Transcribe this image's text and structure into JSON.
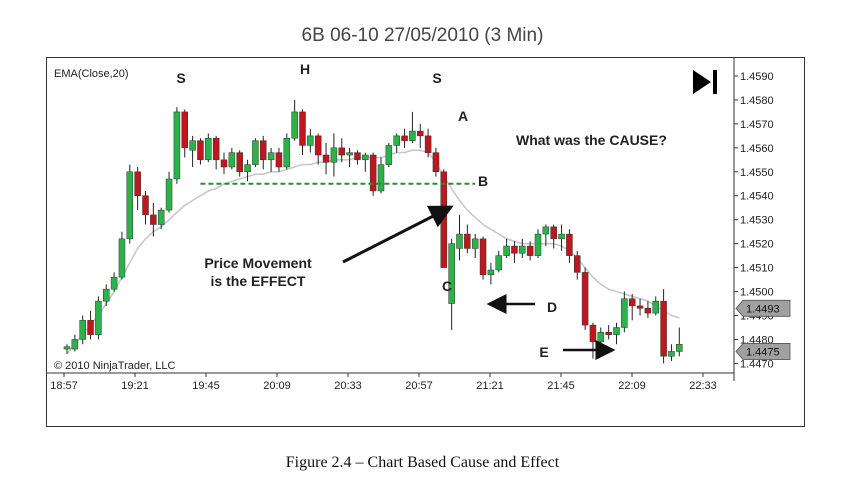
{
  "title": "6B 06-10  27/05/2010 (3 Min)",
  "caption": "Figure 2.4 – Chart Based Cause and Effect",
  "indicator_label": "EMA(Close,20)",
  "copyright": "© 2010 NinjaTrader, LLC",
  "colors": {
    "up": "#2bb34a",
    "down": "#c0161d",
    "ema": "#c8c8c8",
    "support": "#2e8b2e",
    "price_marker": "#a0a0a0",
    "arrow": "#111111"
  },
  "annotations": {
    "S_left": "S",
    "H": "H",
    "S_right": "S",
    "A": "A",
    "B": "B",
    "C": "C",
    "D": "D",
    "E": "E",
    "question": "What was the CAUSE?",
    "effect_line1": "Price Movement",
    "effect_line2": "is the EFFECT"
  },
  "chart_data": {
    "type": "candlestick",
    "x_tick_labels": [
      "18:57",
      "19:21",
      "19:45",
      "20:09",
      "20:33",
      "20:57",
      "21:21",
      "21:45",
      "22:09",
      "22:33"
    ],
    "y_tick_labels": [
      "1.4590",
      "1.4580",
      "1.4570",
      "1.4560",
      "1.4550",
      "1.4540",
      "1.4530",
      "1.4520",
      "1.4510",
      "1.4500",
      "1.4490",
      "1.4480",
      "1.4470"
    ],
    "ylim": [
      1.4466,
      1.4595
    ],
    "price_markers": [
      "1.4493",
      "1.4475"
    ],
    "support_level": 1.4545,
    "candles": [
      {
        "o": 1.4476,
        "h": 1.4478,
        "l": 1.4474,
        "c": 1.4477
      },
      {
        "o": 1.4476,
        "h": 1.4482,
        "l": 1.4475,
        "c": 1.448
      },
      {
        "o": 1.448,
        "h": 1.449,
        "l": 1.4478,
        "c": 1.4488
      },
      {
        "o": 1.4488,
        "h": 1.4492,
        "l": 1.448,
        "c": 1.4482
      },
      {
        "o": 1.4482,
        "h": 1.4498,
        "l": 1.448,
        "c": 1.4496
      },
      {
        "o": 1.4496,
        "h": 1.4503,
        "l": 1.4494,
        "c": 1.4501
      },
      {
        "o": 1.4501,
        "h": 1.4508,
        "l": 1.45,
        "c": 1.4506
      },
      {
        "o": 1.4506,
        "h": 1.4525,
        "l": 1.4505,
        "c": 1.4522
      },
      {
        "o": 1.4522,
        "h": 1.4553,
        "l": 1.452,
        "c": 1.455
      },
      {
        "o": 1.455,
        "h": 1.4552,
        "l": 1.4534,
        "c": 1.454
      },
      {
        "o": 1.454,
        "h": 1.4542,
        "l": 1.4528,
        "c": 1.4532
      },
      {
        "o": 1.4532,
        "h": 1.4537,
        "l": 1.4523,
        "c": 1.4528
      },
      {
        "o": 1.4528,
        "h": 1.4535,
        "l": 1.4526,
        "c": 1.4534
      },
      {
        "o": 1.4534,
        "h": 1.455,
        "l": 1.4533,
        "c": 1.4547
      },
      {
        "o": 1.4547,
        "h": 1.4577,
        "l": 1.4545,
        "c": 1.4575
      },
      {
        "o": 1.4575,
        "h": 1.4576,
        "l": 1.4556,
        "c": 1.456
      },
      {
        "o": 1.4559,
        "h": 1.4565,
        "l": 1.4552,
        "c": 1.4563
      },
      {
        "o": 1.4563,
        "h": 1.4564,
        "l": 1.4553,
        "c": 1.4555
      },
      {
        "o": 1.4555,
        "h": 1.4566,
        "l": 1.4554,
        "c": 1.4564
      },
      {
        "o": 1.4564,
        "h": 1.4565,
        "l": 1.4551,
        "c": 1.4555
      },
      {
        "o": 1.4555,
        "h": 1.4558,
        "l": 1.4549,
        "c": 1.4552
      },
      {
        "o": 1.4552,
        "h": 1.456,
        "l": 1.4551,
        "c": 1.4558
      },
      {
        "o": 1.4558,
        "h": 1.4559,
        "l": 1.4548,
        "c": 1.455
      },
      {
        "o": 1.455,
        "h": 1.4555,
        "l": 1.4546,
        "c": 1.4553
      },
      {
        "o": 1.4553,
        "h": 1.4564,
        "l": 1.4552,
        "c": 1.4563
      },
      {
        "o": 1.4563,
        "h": 1.4565,
        "l": 1.4551,
        "c": 1.4555
      },
      {
        "o": 1.4555,
        "h": 1.456,
        "l": 1.455,
        "c": 1.4558
      },
      {
        "o": 1.4558,
        "h": 1.456,
        "l": 1.455,
        "c": 1.4552
      },
      {
        "o": 1.4552,
        "h": 1.4566,
        "l": 1.4551,
        "c": 1.4564
      },
      {
        "o": 1.4564,
        "h": 1.458,
        "l": 1.4563,
        "c": 1.4575
      },
      {
        "o": 1.4575,
        "h": 1.4576,
        "l": 1.4557,
        "c": 1.4561
      },
      {
        "o": 1.4561,
        "h": 1.4568,
        "l": 1.4558,
        "c": 1.4565
      },
      {
        "o": 1.4565,
        "h": 1.4566,
        "l": 1.4553,
        "c": 1.4557
      },
      {
        "o": 1.4557,
        "h": 1.4562,
        "l": 1.4549,
        "c": 1.4554
      },
      {
        "o": 1.4554,
        "h": 1.4566,
        "l": 1.4548,
        "c": 1.456
      },
      {
        "o": 1.456,
        "h": 1.4564,
        "l": 1.4554,
        "c": 1.4557
      },
      {
        "o": 1.4557,
        "h": 1.456,
        "l": 1.4552,
        "c": 1.4558
      },
      {
        "o": 1.4558,
        "h": 1.4559,
        "l": 1.4553,
        "c": 1.4555
      },
      {
        "o": 1.4555,
        "h": 1.4558,
        "l": 1.455,
        "c": 1.4557
      },
      {
        "o": 1.4557,
        "h": 1.4558,
        "l": 1.454,
        "c": 1.4542
      },
      {
        "o": 1.4542,
        "h": 1.4556,
        "l": 1.4541,
        "c": 1.4553
      },
      {
        "o": 1.4553,
        "h": 1.4562,
        "l": 1.4552,
        "c": 1.4561
      },
      {
        "o": 1.4561,
        "h": 1.4566,
        "l": 1.4558,
        "c": 1.4565
      },
      {
        "o": 1.4565,
        "h": 1.4568,
        "l": 1.456,
        "c": 1.4563
      },
      {
        "o": 1.4563,
        "h": 1.4575,
        "l": 1.4562,
        "c": 1.4567
      },
      {
        "o": 1.4567,
        "h": 1.457,
        "l": 1.456,
        "c": 1.4565
      },
      {
        "o": 1.4565,
        "h": 1.4568,
        "l": 1.4556,
        "c": 1.4558
      },
      {
        "o": 1.4558,
        "h": 1.456,
        "l": 1.4548,
        "c": 1.455
      },
      {
        "o": 1.455,
        "h": 1.4551,
        "l": 1.451,
        "c": 1.451
      },
      {
        "o": 1.4495,
        "h": 1.4522,
        "l": 1.4484,
        "c": 1.452
      },
      {
        "o": 1.4518,
        "h": 1.4532,
        "l": 1.4513,
        "c": 1.4524
      },
      {
        "o": 1.4524,
        "h": 1.4528,
        "l": 1.4516,
        "c": 1.4518
      },
      {
        "o": 1.4518,
        "h": 1.4524,
        "l": 1.4514,
        "c": 1.4522
      },
      {
        "o": 1.4522,
        "h": 1.4523,
        "l": 1.4505,
        "c": 1.4507
      },
      {
        "o": 1.4507,
        "h": 1.4512,
        "l": 1.4503,
        "c": 1.4509
      },
      {
        "o": 1.4509,
        "h": 1.4517,
        "l": 1.4508,
        "c": 1.4515
      },
      {
        "o": 1.4515,
        "h": 1.4522,
        "l": 1.4514,
        "c": 1.4519
      },
      {
        "o": 1.4519,
        "h": 1.4521,
        "l": 1.4512,
        "c": 1.4516
      },
      {
        "o": 1.4516,
        "h": 1.4522,
        "l": 1.4514,
        "c": 1.4519
      },
      {
        "o": 1.4519,
        "h": 1.4521,
        "l": 1.4513,
        "c": 1.4515
      },
      {
        "o": 1.4515,
        "h": 1.4526,
        "l": 1.4514,
        "c": 1.4524
      },
      {
        "o": 1.4524,
        "h": 1.4528,
        "l": 1.4519,
        "c": 1.4527
      },
      {
        "o": 1.4527,
        "h": 1.4528,
        "l": 1.4518,
        "c": 1.4522
      },
      {
        "o": 1.4522,
        "h": 1.4528,
        "l": 1.4517,
        "c": 1.4524
      },
      {
        "o": 1.4524,
        "h": 1.4526,
        "l": 1.4512,
        "c": 1.4515
      },
      {
        "o": 1.4515,
        "h": 1.4517,
        "l": 1.4505,
        "c": 1.4508
      },
      {
        "o": 1.4508,
        "h": 1.451,
        "l": 1.4484,
        "c": 1.4486
      },
      {
        "o": 1.4486,
        "h": 1.4487,
        "l": 1.4472,
        "c": 1.4479
      },
      {
        "o": 1.4479,
        "h": 1.4485,
        "l": 1.4477,
        "c": 1.4483
      },
      {
        "o": 1.4483,
        "h": 1.4486,
        "l": 1.448,
        "c": 1.4482
      },
      {
        "o": 1.4482,
        "h": 1.4487,
        "l": 1.4478,
        "c": 1.4485
      },
      {
        "o": 1.4485,
        "h": 1.45,
        "l": 1.4483,
        "c": 1.4497
      },
      {
        "o": 1.4497,
        "h": 1.4499,
        "l": 1.4488,
        "c": 1.4494
      },
      {
        "o": 1.4494,
        "h": 1.4497,
        "l": 1.449,
        "c": 1.4493
      },
      {
        "o": 1.4493,
        "h": 1.4496,
        "l": 1.4489,
        "c": 1.4491
      },
      {
        "o": 1.4491,
        "h": 1.4498,
        "l": 1.449,
        "c": 1.4496
      },
      {
        "o": 1.4496,
        "h": 1.4501,
        "l": 1.447,
        "c": 1.4473
      },
      {
        "o": 1.4473,
        "h": 1.4478,
        "l": 1.4471,
        "c": 1.4475
      },
      {
        "o": 1.4475,
        "h": 1.4485,
        "l": 1.4473,
        "c": 1.4478
      }
    ],
    "ema": [
      1.4474,
      1.4478,
      1.4482,
      1.4486,
      1.449,
      1.4495,
      1.45,
      1.4506,
      1.4512,
      1.4518,
      1.4522,
      1.4525,
      1.4527,
      1.453,
      1.4533,
      1.4536,
      1.4538,
      1.454,
      1.4542,
      1.4543,
      1.4545,
      1.4546,
      1.4547,
      1.4548,
      1.4549,
      1.4549,
      1.455,
      1.455,
      1.4551,
      1.4552,
      1.4553,
      1.4553,
      1.4554,
      1.4554,
      1.4555,
      1.4555,
      1.4555,
      1.4556,
      1.4556,
      1.4556,
      1.4556,
      1.4557,
      1.4558,
      1.4558,
      1.4559,
      1.4559,
      1.4558,
      1.4554,
      1.4548,
      1.4543,
      1.4538,
      1.4534,
      1.4531,
      1.4528,
      1.4526,
      1.4524,
      1.4522,
      1.4521,
      1.452,
      1.452,
      1.452,
      1.452,
      1.452,
      1.4519,
      1.4517,
      1.4514,
      1.451,
      1.4506,
      1.4503,
      1.4501,
      1.45,
      1.4499,
      1.4498,
      1.4497,
      1.4496,
      1.4494,
      1.4492,
      1.449,
      1.4489
    ]
  }
}
